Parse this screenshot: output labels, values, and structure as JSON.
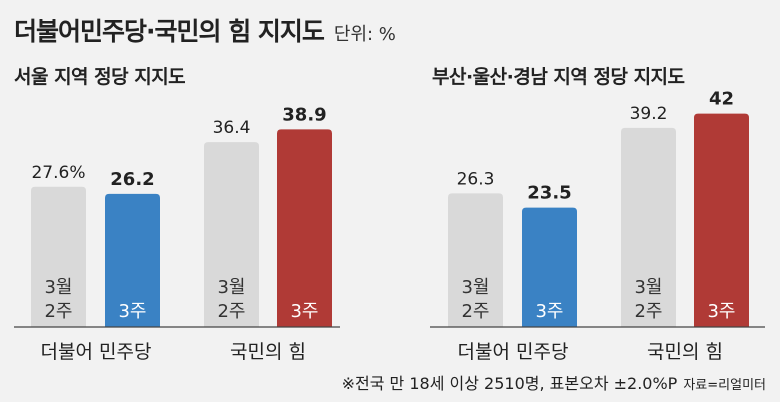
{
  "header": {
    "title": "더불어민주당·국민의 힘 지지도",
    "unit": "단위: %"
  },
  "chart_data": [
    {
      "type": "bar",
      "title": "서울 지역 정당 지지도",
      "groups": [
        "더불어 민주당",
        "국민의 힘"
      ],
      "bar_labels": [
        "3월\n2주",
        "3주"
      ],
      "series": [
        {
          "name": "3월 2주",
          "values": [
            27.6,
            36.4
          ],
          "value_labels": [
            "27.6%",
            "36.4"
          ]
        },
        {
          "name": "3주",
          "values": [
            26.2,
            38.9
          ],
          "value_labels": [
            "26.2",
            "38.9"
          ]
        }
      ],
      "ylim": [
        0,
        45
      ]
    },
    {
      "type": "bar",
      "title": "부산·울산·경남 지역 정당 지지도",
      "groups": [
        "더불어 민주당",
        "국민의 힘"
      ],
      "bar_labels": [
        "3월\n2주",
        "3주"
      ],
      "series": [
        {
          "name": "3월 2주",
          "values": [
            26.3,
            39.2
          ],
          "value_labels": [
            "26.3",
            "39.2"
          ]
        },
        {
          "name": "3주",
          "values": [
            23.5,
            42
          ],
          "value_labels": [
            "23.5",
            "42"
          ]
        }
      ],
      "ylim": [
        0,
        45
      ]
    }
  ],
  "colors": {
    "previous": "#d9d9d9",
    "democratic": "#3a82c4",
    "ppp": "#b03a36",
    "baseline": "#444444"
  },
  "note": {
    "text": "※전국 만 18세 이상 2510명, 표본오차 ±2.0%P",
    "source": "자료=리얼미터"
  }
}
